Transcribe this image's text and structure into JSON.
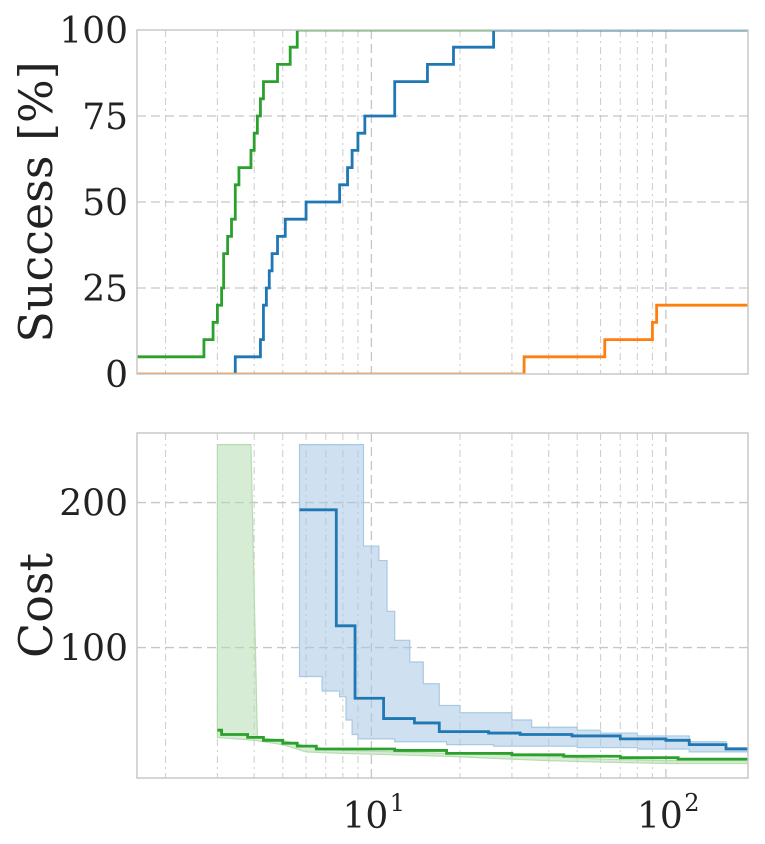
{
  "colors": {
    "blue": "#1f77b4",
    "orange": "#ff7f0e",
    "green": "#2ca02c"
  },
  "chart_data": [
    {
      "type": "line",
      "ylabel": "Success [%]",
      "xscale": "log",
      "xlim": [
        1.6,
        190
      ],
      "ylim": [
        0,
        100
      ],
      "grid": true,
      "yticks": [
        0,
        25,
        50,
        75,
        100
      ],
      "yticklabels": [
        "0",
        "25",
        "50",
        "75",
        "100"
      ],
      "series": [
        {
          "color": "green",
          "step": true,
          "points": [
            [
              1.6,
              5
            ],
            [
              2.7,
              5
            ],
            [
              2.7,
              10
            ],
            [
              2.9,
              10
            ],
            [
              2.9,
              15
            ],
            [
              3.0,
              15
            ],
            [
              3.0,
              20
            ],
            [
              3.1,
              20
            ],
            [
              3.1,
              25
            ],
            [
              3.15,
              25
            ],
            [
              3.15,
              35
            ],
            [
              3.25,
              35
            ],
            [
              3.25,
              40
            ],
            [
              3.35,
              40
            ],
            [
              3.35,
              45
            ],
            [
              3.45,
              45
            ],
            [
              3.45,
              55
            ],
            [
              3.55,
              55
            ],
            [
              3.55,
              60
            ],
            [
              3.9,
              60
            ],
            [
              3.9,
              65
            ],
            [
              4.0,
              65
            ],
            [
              4.0,
              70
            ],
            [
              4.1,
              70
            ],
            [
              4.1,
              75
            ],
            [
              4.2,
              75
            ],
            [
              4.2,
              80
            ],
            [
              4.3,
              80
            ],
            [
              4.3,
              85
            ],
            [
              4.8,
              85
            ],
            [
              4.8,
              90
            ],
            [
              5.3,
              90
            ],
            [
              5.3,
              95
            ],
            [
              5.6,
              95
            ],
            [
              5.6,
              100
            ],
            [
              190,
              100
            ]
          ]
        },
        {
          "color": "blue",
          "step": true,
          "points": [
            [
              3.4,
              0
            ],
            [
              3.45,
              0
            ],
            [
              3.45,
              5
            ],
            [
              4.2,
              5
            ],
            [
              4.2,
              10
            ],
            [
              4.3,
              10
            ],
            [
              4.3,
              20
            ],
            [
              4.4,
              20
            ],
            [
              4.4,
              25
            ],
            [
              4.5,
              25
            ],
            [
              4.5,
              30
            ],
            [
              4.6,
              30
            ],
            [
              4.6,
              35
            ],
            [
              4.8,
              35
            ],
            [
              4.8,
              40
            ],
            [
              5.1,
              40
            ],
            [
              5.1,
              45
            ],
            [
              6.0,
              45
            ],
            [
              6.0,
              50
            ],
            [
              7.8,
              50
            ],
            [
              7.8,
              55
            ],
            [
              8.3,
              55
            ],
            [
              8.3,
              60
            ],
            [
              8.6,
              60
            ],
            [
              8.6,
              65
            ],
            [
              9.0,
              65
            ],
            [
              9.0,
              70
            ],
            [
              9.5,
              70
            ],
            [
              9.5,
              75
            ],
            [
              12.0,
              75
            ],
            [
              12.0,
              85
            ],
            [
              15.5,
              85
            ],
            [
              15.5,
              90
            ],
            [
              19.0,
              90
            ],
            [
              19.0,
              95
            ],
            [
              26.0,
              95
            ],
            [
              26.0,
              100
            ],
            [
              190,
              100
            ]
          ]
        },
        {
          "color": "orange",
          "step": true,
          "points": [
            [
              1.6,
              0
            ],
            [
              33,
              0
            ],
            [
              33,
              5
            ],
            [
              62,
              5
            ],
            [
              62,
              10
            ],
            [
              90,
              10
            ],
            [
              90,
              15
            ],
            [
              93,
              15
            ],
            [
              93,
              20
            ],
            [
              190,
              20
            ]
          ]
        }
      ]
    },
    {
      "type": "line",
      "ylabel": "Cost",
      "xscale": "log",
      "xlim": [
        1.6,
        190
      ],
      "ylim": [
        10,
        248
      ],
      "grid": true,
      "yticks": [
        100,
        200
      ],
      "yticklabels": [
        "100",
        "200"
      ],
      "xticklabels": [
        "10",
        "1",
        "10",
        "2"
      ],
      "series": [
        {
          "color": "green",
          "band_color": "#b7dcb0",
          "band": [
            [
              3.0,
              240
            ],
            [
              3.9,
              240
            ],
            [
              4.1,
              38
            ],
            [
              5.0,
              36
            ],
            [
              6.0,
              32
            ],
            [
              7.0,
              30
            ],
            [
              8.0,
              29
            ],
            [
              12.0,
              28
            ],
            [
              18.0,
              27
            ],
            [
              30.0,
              26
            ],
            [
              40.0,
              25
            ],
            [
              60.0,
              23
            ],
            [
              100.0,
              22
            ],
            [
              190.0,
              22
            ]
          ],
          "band_low": [
            [
              3.0,
              38
            ],
            [
              4.0,
              36
            ],
            [
              5.0,
              33
            ],
            [
              6.0,
              28
            ],
            [
              8.0,
              27
            ],
            [
              12.0,
              26
            ],
            [
              18.0,
              25
            ],
            [
              30.0,
              23
            ],
            [
              40.0,
              22
            ],
            [
              60.0,
              21
            ],
            [
              100.0,
              20
            ],
            [
              190.0,
              20
            ]
          ],
          "step": true,
          "points": [
            [
              3.0,
              43
            ],
            [
              3.1,
              43
            ],
            [
              3.1,
              40
            ],
            [
              3.8,
              40
            ],
            [
              3.8,
              38
            ],
            [
              4.3,
              38
            ],
            [
              4.3,
              36
            ],
            [
              5.0,
              36
            ],
            [
              5.0,
              34
            ],
            [
              5.6,
              34
            ],
            [
              5.6,
              32
            ],
            [
              6.5,
              32
            ],
            [
              6.5,
              30
            ],
            [
              12.0,
              30
            ],
            [
              12.0,
              29
            ],
            [
              18.0,
              29
            ],
            [
              18.0,
              27
            ],
            [
              30.0,
              27
            ],
            [
              30.0,
              26
            ],
            [
              45.0,
              26
            ],
            [
              45.0,
              25
            ],
            [
              70.0,
              25
            ],
            [
              70.0,
              24
            ],
            [
              110.0,
              24
            ],
            [
              110.0,
              23
            ],
            [
              190.0,
              23
            ]
          ]
        },
        {
          "color": "blue",
          "band_color": "#a8c9e3",
          "band": [
            [
              5.7,
              240
            ],
            [
              9.4,
              240
            ],
            [
              9.4,
              170
            ],
            [
              10.6,
              170
            ],
            [
              10.6,
              160
            ],
            [
              11.3,
              160
            ],
            [
              11.3,
              125
            ],
            [
              12.0,
              125
            ],
            [
              12.0,
              105
            ],
            [
              13.5,
              105
            ],
            [
              13.5,
              90
            ],
            [
              15.0,
              90
            ],
            [
              15.0,
              75
            ],
            [
              17.0,
              75
            ],
            [
              17.0,
              60
            ],
            [
              20.0,
              60
            ],
            [
              20.0,
              55
            ],
            [
              30.0,
              55
            ],
            [
              30.0,
              50
            ],
            [
              35.0,
              50
            ],
            [
              35.0,
              45
            ],
            [
              50.0,
              45
            ],
            [
              50.0,
              43
            ],
            [
              60.0,
              43
            ],
            [
              60.0,
              41
            ],
            [
              80.0,
              41
            ],
            [
              80.0,
              39
            ],
            [
              120.0,
              39
            ],
            [
              120.0,
              35
            ],
            [
              160.0,
              35
            ],
            [
              160.0,
              31
            ],
            [
              190.0,
              31
            ]
          ],
          "band_low": [
            [
              5.7,
              80
            ],
            [
              6.8,
              80
            ],
            [
              6.8,
              70
            ],
            [
              7.8,
              70
            ],
            [
              7.8,
              66
            ],
            [
              8.2,
              66
            ],
            [
              8.2,
              50
            ],
            [
              8.6,
              50
            ],
            [
              8.6,
              40
            ],
            [
              9.0,
              40
            ],
            [
              9.0,
              37
            ],
            [
              12.0,
              37
            ],
            [
              12.0,
              35
            ],
            [
              18.0,
              35
            ],
            [
              18.0,
              33
            ],
            [
              26.0,
              33
            ],
            [
              26.0,
              32
            ],
            [
              50.0,
              32
            ],
            [
              50.0,
              31
            ],
            [
              80.0,
              31
            ],
            [
              80.0,
              30
            ],
            [
              120.0,
              30
            ],
            [
              120.0,
              28
            ],
            [
              190.0,
              28
            ]
          ],
          "step": true,
          "points": [
            [
              5.7,
              195
            ],
            [
              7.6,
              195
            ],
            [
              7.6,
              115
            ],
            [
              8.8,
              115
            ],
            [
              8.8,
              65
            ],
            [
              11.0,
              65
            ],
            [
              11.0,
              51
            ],
            [
              14.0,
              51
            ],
            [
              14.0,
              48
            ],
            [
              17.0,
              48
            ],
            [
              17.0,
              42
            ],
            [
              25.0,
              42
            ],
            [
              25.0,
              41
            ],
            [
              32.0,
              41
            ],
            [
              32.0,
              40
            ],
            [
              48.0,
              40
            ],
            [
              48.0,
              39
            ],
            [
              70.0,
              39
            ],
            [
              70.0,
              37
            ],
            [
              100.0,
              37
            ],
            [
              100.0,
              36
            ],
            [
              120.0,
              36
            ],
            [
              120.0,
              33
            ],
            [
              160.0,
              33
            ],
            [
              160.0,
              30
            ],
            [
              190.0,
              30
            ]
          ]
        }
      ]
    }
  ]
}
